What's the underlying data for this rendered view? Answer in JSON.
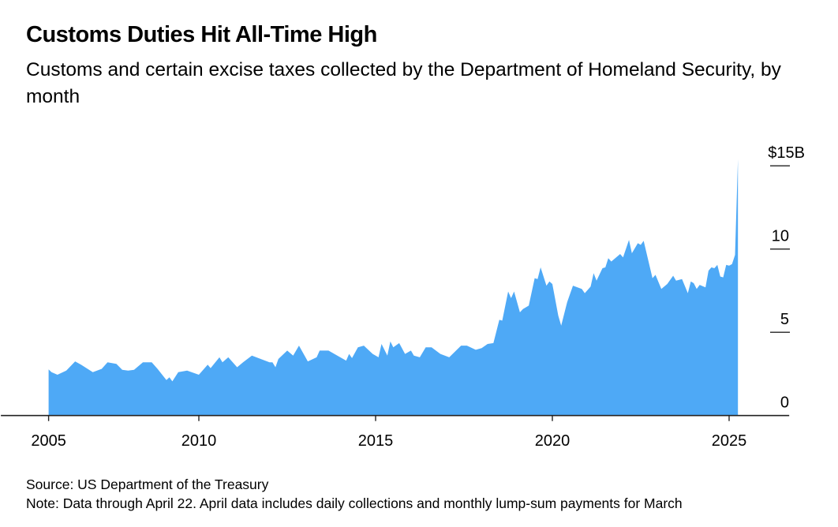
{
  "chart_data": {
    "type": "area",
    "title": "Customs Duties Hit All-Time High",
    "subtitle": "Customs and certain excise taxes collected by the Department of Homeland Security, by month",
    "xlabel": "",
    "ylabel": "",
    "x_ticks": [
      2005,
      2010,
      2015,
      2020,
      2025
    ],
    "x_tick_labels": [
      "2005",
      "2010",
      "2015",
      "2020",
      "2025"
    ],
    "y_ticks": [
      0,
      5,
      10,
      15
    ],
    "y_tick_labels": [
      "0",
      "5",
      "10",
      "$15B"
    ],
    "ylim": [
      0,
      15.5
    ],
    "xlim": [
      2004.4,
      2026.7
    ],
    "grid": false,
    "fill_color": "#4ea9f6",
    "series": [
      {
        "points": [
          [
            "2005-10",
            2.77
          ],
          [
            "2005-11",
            2.6
          ],
          [
            "2006-01",
            2.45
          ],
          [
            "2006-04",
            2.7
          ],
          [
            "2006-07",
            3.25
          ],
          [
            "2006-09",
            3.05
          ],
          [
            "2007-01",
            2.6
          ],
          [
            "2007-04",
            2.8
          ],
          [
            "2007-06",
            3.2
          ],
          [
            "2007-09",
            3.1
          ],
          [
            "2007-11",
            2.75
          ],
          [
            "2008-01",
            2.7
          ],
          [
            "2008-03",
            2.75
          ],
          [
            "2008-06",
            3.2
          ],
          [
            "2008-09",
            3.2
          ],
          [
            "2008-11",
            2.8
          ],
          [
            "2009-02",
            2.13
          ],
          [
            "2009-03",
            2.3
          ],
          [
            "2009-04",
            2.05
          ],
          [
            "2009-06",
            2.6
          ],
          [
            "2009-09",
            2.7
          ],
          [
            "2010-01",
            2.45
          ],
          [
            "2010-04",
            3.05
          ],
          [
            "2010-05",
            2.85
          ],
          [
            "2010-08",
            3.5
          ],
          [
            "2010-09",
            3.2
          ],
          [
            "2010-11",
            3.5
          ],
          [
            "2011-02",
            2.9
          ],
          [
            "2011-04",
            3.2
          ],
          [
            "2011-07",
            3.6
          ],
          [
            "2012-01",
            3.2
          ],
          [
            "2012-02",
            3.2
          ],
          [
            "2012-03",
            2.9
          ],
          [
            "2012-04",
            3.4
          ],
          [
            "2012-07",
            3.9
          ],
          [
            "2012-09",
            3.6
          ],
          [
            "2012-11",
            4.2
          ],
          [
            "2013-02",
            3.25
          ],
          [
            "2013-05",
            3.5
          ],
          [
            "2013-06",
            3.9
          ],
          [
            "2013-09",
            3.9
          ],
          [
            "2014-01",
            3.5
          ],
          [
            "2014-03",
            3.3
          ],
          [
            "2014-04",
            3.7
          ],
          [
            "2014-05",
            3.45
          ],
          [
            "2014-07",
            4.1
          ],
          [
            "2014-09",
            4.2
          ],
          [
            "2014-12",
            3.7
          ],
          [
            "2015-02",
            3.5
          ],
          [
            "2015-03",
            4.3
          ],
          [
            "2015-05",
            3.6
          ],
          [
            "2015-06",
            4.45
          ],
          [
            "2015-07",
            4.1
          ],
          [
            "2015-09",
            4.35
          ],
          [
            "2015-11",
            3.7
          ],
          [
            "2016-01",
            3.9
          ],
          [
            "2016-02",
            3.6
          ],
          [
            "2016-04",
            3.5
          ],
          [
            "2016-06",
            4.1
          ],
          [
            "2016-08",
            4.1
          ],
          [
            "2016-11",
            3.7
          ],
          [
            "2017-02",
            3.5
          ],
          [
            "2017-06",
            4.2
          ],
          [
            "2017-08",
            4.2
          ],
          [
            "2017-11",
            3.95
          ],
          [
            "2018-01",
            4.05
          ],
          [
            "2018-03",
            4.3
          ],
          [
            "2018-05",
            4.35
          ],
          [
            "2018-07",
            5.75
          ],
          [
            "2018-08",
            5.7
          ],
          [
            "2018-10",
            7.45
          ],
          [
            "2018-11",
            7.05
          ],
          [
            "2018-12",
            7.45
          ],
          [
            "2019-02",
            6.2
          ],
          [
            "2019-03",
            6.4
          ],
          [
            "2019-05",
            6.6
          ],
          [
            "2019-07",
            8.25
          ],
          [
            "2019-08",
            8.2
          ],
          [
            "2019-09",
            8.9
          ],
          [
            "2019-11",
            7.8
          ],
          [
            "2019-12",
            8.05
          ],
          [
            "2020-01",
            7.9
          ],
          [
            "2020-03",
            6.0
          ],
          [
            "2020-04",
            5.4
          ],
          [
            "2020-06",
            6.8
          ],
          [
            "2020-08",
            7.8
          ],
          [
            "2020-11",
            7.6
          ],
          [
            "2020-12",
            7.35
          ],
          [
            "2021-02",
            7.75
          ],
          [
            "2021-03",
            8.55
          ],
          [
            "2021-04",
            8.1
          ],
          [
            "2021-06",
            8.85
          ],
          [
            "2021-07",
            8.9
          ],
          [
            "2021-08",
            9.45
          ],
          [
            "2021-09",
            9.25
          ],
          [
            "2021-12",
            9.7
          ],
          [
            "2022-01",
            9.5
          ],
          [
            "2022-03",
            10.55
          ],
          [
            "2022-04",
            9.75
          ],
          [
            "2022-06",
            10.35
          ],
          [
            "2022-07",
            10.25
          ],
          [
            "2022-08",
            10.5
          ],
          [
            "2022-11",
            8.25
          ],
          [
            "2022-12",
            8.45
          ],
          [
            "2023-02",
            7.6
          ],
          [
            "2023-04",
            7.9
          ],
          [
            "2023-06",
            8.4
          ],
          [
            "2023-07",
            8.1
          ],
          [
            "2023-09",
            8.2
          ],
          [
            "2023-11",
            7.35
          ],
          [
            "2023-12",
            8.05
          ],
          [
            "2024-01",
            7.95
          ],
          [
            "2024-02",
            7.6
          ],
          [
            "2024-03",
            7.85
          ],
          [
            "2024-05",
            7.7
          ],
          [
            "2024-06",
            8.7
          ],
          [
            "2024-07",
            8.9
          ],
          [
            "2024-08",
            8.85
          ],
          [
            "2024-09",
            9.05
          ],
          [
            "2024-10",
            8.35
          ],
          [
            "2024-11",
            8.3
          ],
          [
            "2024-12",
            9.05
          ],
          [
            "2025-01",
            9.0
          ],
          [
            "2025-02",
            9.1
          ],
          [
            "2025-03",
            9.65
          ],
          [
            "2025-04",
            15.4
          ]
        ]
      }
    ],
    "source": "Source: US Department of the Treasury",
    "note": "Note: Data through April 22. April data includes daily collections and monthly lump-sum payments for March"
  }
}
